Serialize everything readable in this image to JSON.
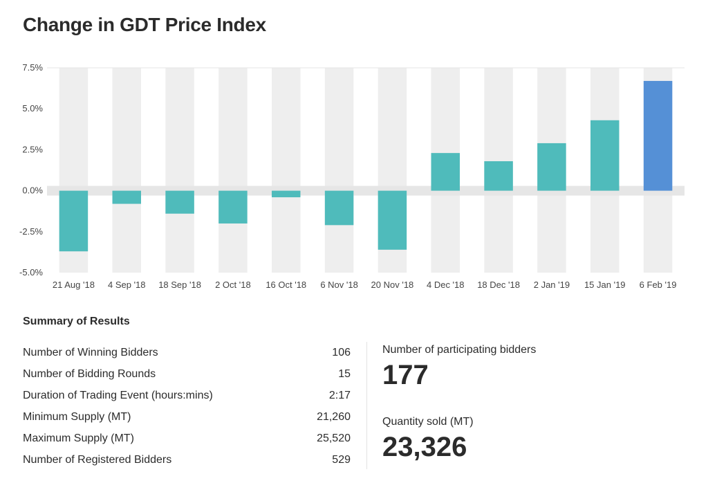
{
  "title": "Change in GDT Price Index",
  "chart_data": {
    "type": "bar",
    "title": "Change in GDT Price Index",
    "categories": [
      "21 Aug '18",
      "4 Sep '18",
      "18 Sep '18",
      "2 Oct '18",
      "16 Oct '18",
      "6 Nov '18",
      "20 Nov '18",
      "4 Dec '18",
      "18 Dec '18",
      "2 Jan '19",
      "15 Jan '19",
      "6 Feb '19"
    ],
    "values": [
      -3.7,
      -0.8,
      -1.4,
      -2.0,
      -0.4,
      -2.1,
      -3.6,
      2.3,
      1.8,
      2.9,
      4.3,
      6.7
    ],
    "ylim": [
      -5.0,
      7.5
    ],
    "yticks": [
      "7.5%",
      "5.0%",
      "2.5%",
      "0.0%",
      "-2.5%",
      "-5.0%"
    ],
    "ytick_values": [
      7.5,
      5.0,
      2.5,
      0.0,
      -2.5,
      -5.0
    ],
    "xlabel": "",
    "ylabel": "",
    "colors": {
      "bar": "#4fbbbb",
      "highlight": "#5590d6",
      "band": "#eeeeee",
      "zero_line": "#e6e6e6"
    }
  },
  "summary": {
    "title": "Summary of Results",
    "rows": [
      {
        "label": "Number of Winning Bidders",
        "value": "106"
      },
      {
        "label": "Number of Bidding Rounds",
        "value": "15"
      },
      {
        "label": "Duration of Trading Event (hours:mins)",
        "value": "2:17"
      },
      {
        "label": "Minimum Supply (MT)",
        "value": "21,260"
      },
      {
        "label": "Maximum Supply (MT)",
        "value": "25,520"
      },
      {
        "label": "Number of Registered Bidders",
        "value": "529"
      }
    ]
  },
  "stats": {
    "participating_label": "Number of participating bidders",
    "participating_value": "177",
    "quantity_label": "Quantity sold (MT)",
    "quantity_value": "23,326"
  }
}
